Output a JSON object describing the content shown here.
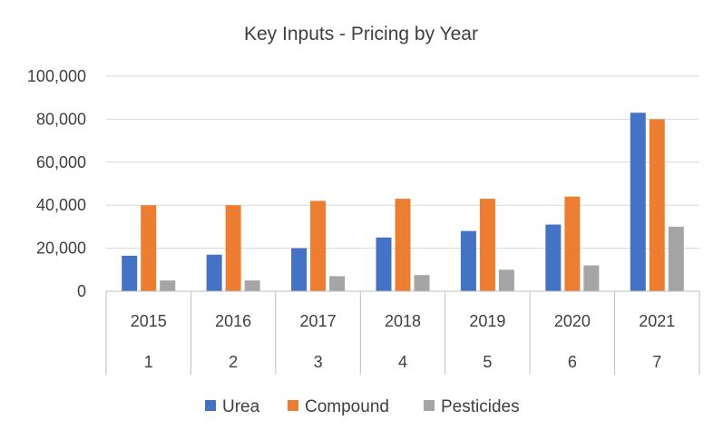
{
  "chart_data": {
    "type": "bar",
    "title": "Key Inputs - Pricing by Year",
    "xlabel": "",
    "ylabel": "",
    "ylim": [
      0,
      100000
    ],
    "yticks": [
      0,
      20000,
      40000,
      60000,
      80000,
      100000
    ],
    "ytick_labels": [
      "0",
      "20,000",
      "40,000",
      "60,000",
      "80,000",
      "100,000"
    ],
    "grid": true,
    "legend_position": "bottom",
    "categories": [
      "2015",
      "2016",
      "2017",
      "2018",
      "2019",
      "2020",
      "2021"
    ],
    "subcategories": [
      "1",
      "2",
      "3",
      "4",
      "5",
      "6",
      "7"
    ],
    "series": [
      {
        "name": "Urea",
        "color": "#4472C4",
        "values": [
          16500,
          17000,
          20000,
          25000,
          28000,
          31000,
          83000
        ]
      },
      {
        "name": "Compound",
        "color": "#ED7D31",
        "values": [
          40000,
          40000,
          42000,
          43000,
          43000,
          44000,
          80000
        ]
      },
      {
        "name": "Pesticides",
        "color": "#A5A5A5",
        "values": [
          5000,
          5000,
          7000,
          7500,
          10000,
          12000,
          30000
        ]
      }
    ]
  }
}
